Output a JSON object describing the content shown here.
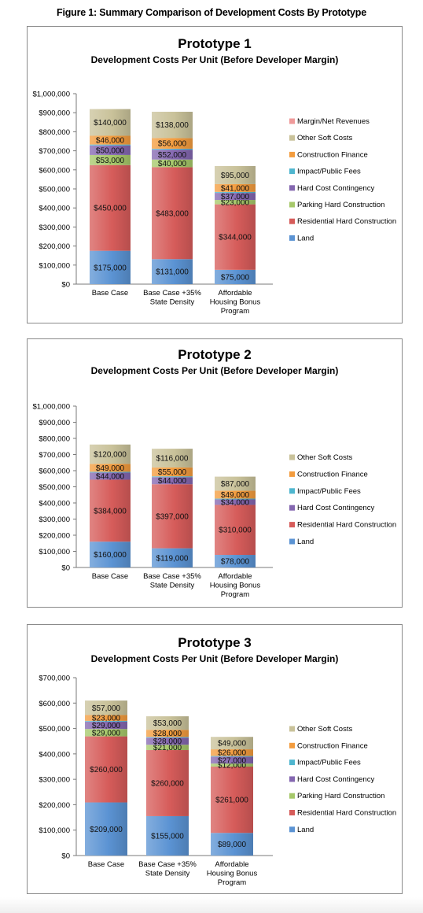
{
  "figure_title": "Figure 1: Summary Comparison of Development Costs By Prototype",
  "colors": {
    "Land": "#5b93d3",
    "Residential Hard Construction": "#d65c5a",
    "Parking Hard Construction": "#a6c86a",
    "Hard Cost Contingency": "#8467b0",
    "Impact/Public Fees": "#4fb6cf",
    "Construction Finance": "#f39c3e",
    "Other Soft Costs": "#c9c29a",
    "Margin/Net Revenues": "#ef9a9a"
  },
  "chart_data": [
    {
      "type": "bar",
      "stacked": true,
      "title": "Prototype 1",
      "subtitle": "Development Costs Per Unit (Before Developer Margin)",
      "categories": [
        [
          "Base Case"
        ],
        [
          "Base Case +35%",
          "State Density"
        ],
        [
          "Affordable",
          "Housing Bonus",
          "Program"
        ]
      ],
      "ylim": [
        0,
        1000000
      ],
      "y_ticks": [
        "$0",
        "$100,000",
        "$200,000",
        "$300,000",
        "$400,000",
        "$500,000",
        "$600,000",
        "$700,000",
        "$800,000",
        "$900,000",
        "$1,000,000"
      ],
      "legend_position": "right",
      "legend": [
        "Margin/Net Revenues",
        "Other Soft Costs",
        "Construction Finance",
        "Impact/Public Fees",
        "Hard Cost Contingency",
        "Parking Hard Construction",
        "Residential Hard Construction",
        "Land"
      ],
      "series": [
        {
          "name": "Land",
          "values": [
            175000,
            131000,
            75000
          ],
          "labels": [
            "$175,000",
            "$131,000",
            "$75,000"
          ]
        },
        {
          "name": "Residential Hard Construction",
          "values": [
            450000,
            483000,
            344000
          ],
          "labels": [
            "$450,000",
            "$483,000",
            "$344,000"
          ]
        },
        {
          "name": "Parking Hard Construction",
          "values": [
            53000,
            40000,
            23000
          ],
          "labels": [
            "$53,000",
            "$40,000",
            "$23,000"
          ]
        },
        {
          "name": "Hard Cost Contingency",
          "values": [
            50000,
            52000,
            37000
          ],
          "labels": [
            "$50,000",
            "$52,000",
            "$37,000"
          ]
        },
        {
          "name": "Impact/Public Fees",
          "values": [
            5000,
            5000,
            5000
          ],
          "labels": [
            "",
            "",
            ""
          ]
        },
        {
          "name": "Construction Finance",
          "values": [
            46000,
            56000,
            41000
          ],
          "labels": [
            "$46,000",
            "$56,000",
            "$41,000"
          ]
        },
        {
          "name": "Other Soft Costs",
          "values": [
            140000,
            138000,
            95000
          ],
          "labels": [
            "$140,000",
            "$138,000",
            "$95,000"
          ]
        }
      ]
    },
    {
      "type": "bar",
      "stacked": true,
      "title": "Prototype 2",
      "subtitle": "Development Costs Per Unit (Before Developer Margin)",
      "categories": [
        [
          "Base Case"
        ],
        [
          "Base Case +35%",
          "State Density"
        ],
        [
          "Affordable",
          "Housing Bonus",
          "Program"
        ]
      ],
      "ylim": [
        0,
        1000000
      ],
      "y_ticks": [
        "$0",
        "$100,000",
        "$200,000",
        "$300,000",
        "$400,000",
        "$500,000",
        "$600,000",
        "$700,000",
        "$800,000",
        "$900,000",
        "$1,000,000"
      ],
      "legend_position": "right",
      "legend": [
        "Other Soft Costs",
        "Construction Finance",
        "Impact/Public Fees",
        "Hard Cost Contingency",
        "Residential Hard Construction",
        "Land"
      ],
      "series": [
        {
          "name": "Land",
          "values": [
            160000,
            119000,
            78000
          ],
          "labels": [
            "$160,000",
            "$119,000",
            "$78,000"
          ]
        },
        {
          "name": "Residential Hard Construction",
          "values": [
            384000,
            397000,
            310000
          ],
          "labels": [
            "$384,000",
            "$397,000",
            "$310,000"
          ]
        },
        {
          "name": "Hard Cost Contingency",
          "values": [
            44000,
            44000,
            34000
          ],
          "labels": [
            "$44,000",
            "$44,000",
            "$34,000"
          ]
        },
        {
          "name": "Impact/Public Fees",
          "values": [
            5000,
            5000,
            5000
          ],
          "labels": [
            "",
            "",
            ""
          ]
        },
        {
          "name": "Construction Finance",
          "values": [
            49000,
            55000,
            49000
          ],
          "labels": [
            "$49,000",
            "$55,000",
            "$49,000"
          ]
        },
        {
          "name": "Other Soft Costs",
          "values": [
            120000,
            116000,
            87000
          ],
          "labels": [
            "$120,000",
            "$116,000",
            "$87,000"
          ]
        }
      ]
    },
    {
      "type": "bar",
      "stacked": true,
      "title": "Prototype 3",
      "subtitle": "Development Costs Per Unit (Before Developer Margin)",
      "categories": [
        [
          "Base Case"
        ],
        [
          "Base Case +35%",
          "State Density"
        ],
        [
          "Affordable",
          "Housing Bonus",
          "Program"
        ]
      ],
      "ylim": [
        0,
        700000
      ],
      "y_ticks": [
        "$0",
        "$100,000",
        "$200,000",
        "$300,000",
        "$400,000",
        "$500,000",
        "$600,000",
        "$700,000"
      ],
      "legend_position": "right",
      "legend": [
        "Other Soft Costs",
        "Construction Finance",
        "Impact/Public Fees",
        "Hard Cost Contingency",
        "Parking Hard Construction",
        "Residential Hard Construction",
        "Land"
      ],
      "series": [
        {
          "name": "Land",
          "values": [
            209000,
            155000,
            89000
          ],
          "labels": [
            "$209,000",
            "$155,000",
            "$89,000"
          ]
        },
        {
          "name": "Residential Hard Construction",
          "values": [
            260000,
            260000,
            261000
          ],
          "labels": [
            "$260,000",
            "$260,000",
            "$261,000"
          ]
        },
        {
          "name": "Parking Hard Construction",
          "values": [
            29000,
            21000,
            12000
          ],
          "labels": [
            "$29,000",
            "$21,000",
            "$12,000"
          ]
        },
        {
          "name": "Hard Cost Contingency",
          "values": [
            29000,
            28000,
            27000
          ],
          "labels": [
            "$29,000",
            "$28,000",
            "$27,000"
          ]
        },
        {
          "name": "Impact/Public Fees",
          "values": [
            3000,
            3000,
            3000
          ],
          "labels": [
            "",
            "",
            ""
          ]
        },
        {
          "name": "Construction Finance",
          "values": [
            23000,
            28000,
            26000
          ],
          "labels": [
            "$23,000",
            "$28,000",
            "$26,000"
          ]
        },
        {
          "name": "Other Soft Costs",
          "values": [
            57000,
            53000,
            49000
          ],
          "labels": [
            "$57,000",
            "$53,000",
            "$49,000"
          ]
        }
      ]
    }
  ]
}
